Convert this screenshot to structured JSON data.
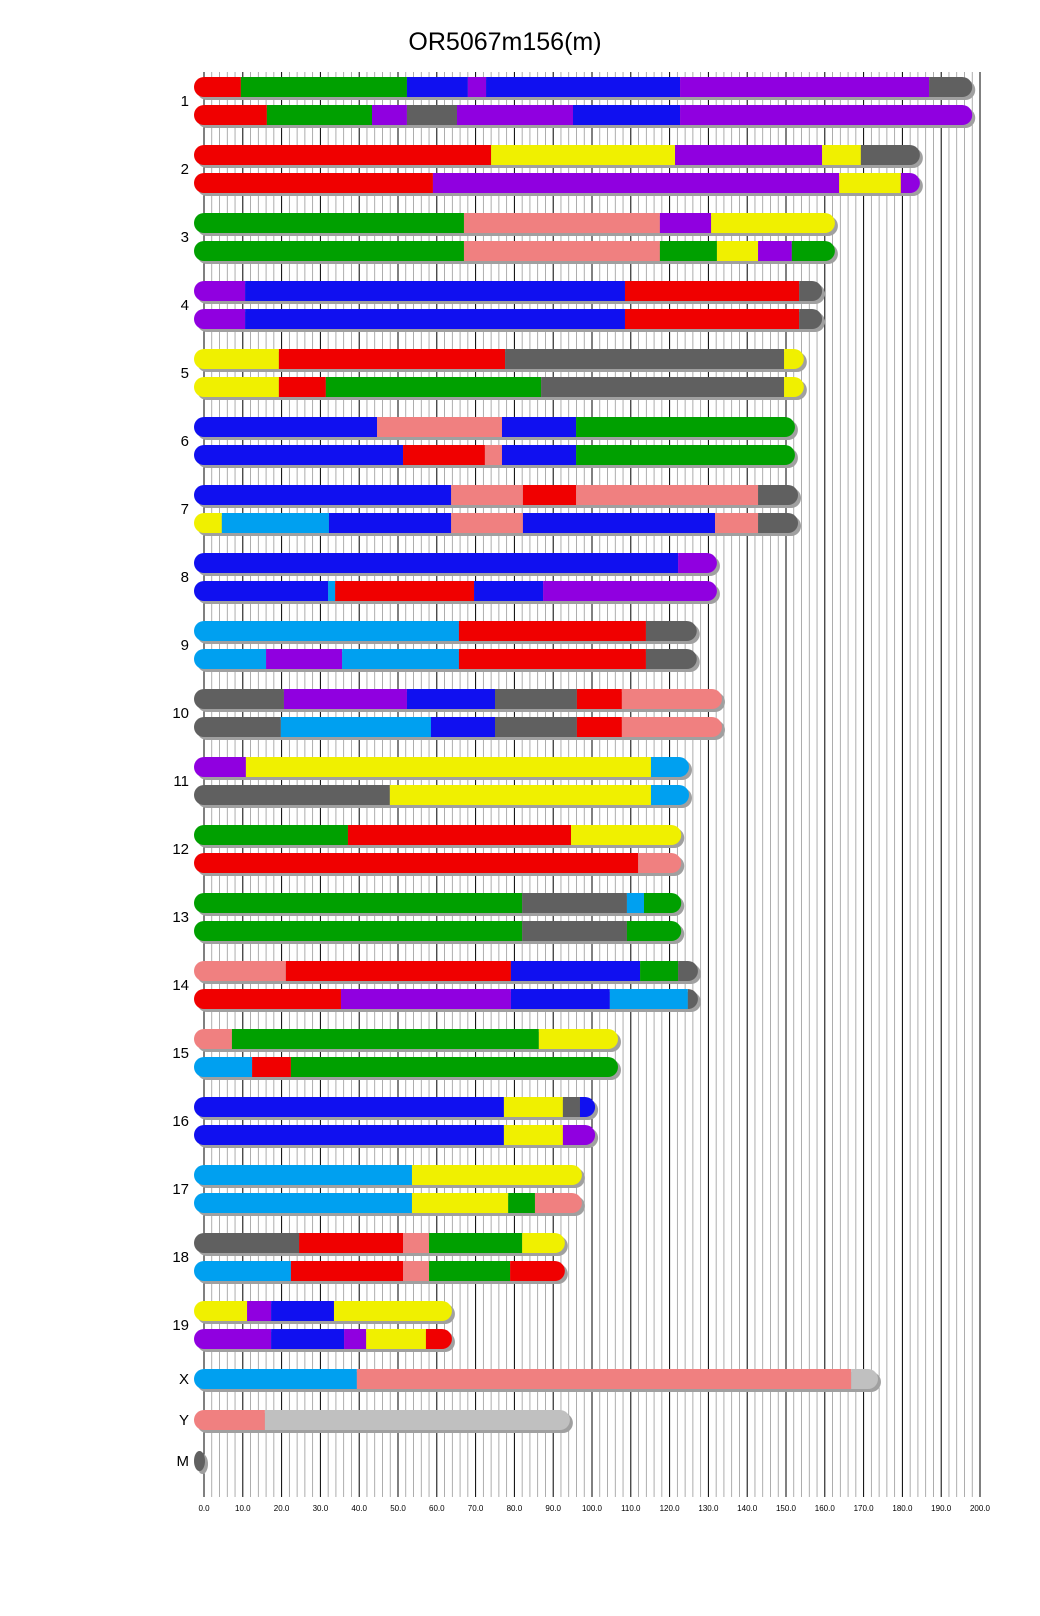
{
  "chart_data": {
    "type": "chromosome-painting",
    "title": "OR5067m156(m)",
    "xlim": [
      0,
      200
    ],
    "grid": {
      "major_step": 10,
      "minor_step": 2
    },
    "x_ticks": [
      "0.0",
      "10.0",
      "20.0",
      "30.0",
      "40.0",
      "50.0",
      "60.0",
      "70.0",
      "80.0",
      "90.0",
      "100.0",
      "110.0",
      "120.0",
      "130.0",
      "140.0",
      "150.0",
      "160.0",
      "170.0",
      "180.0",
      "190.0",
      "200.0"
    ],
    "colors": {
      "red": "#F00000",
      "green": "#00A000",
      "blue": "#1010F0",
      "purple": "#9000E0",
      "gray": "#606060",
      "yellow": "#F0F000",
      "pink": "#F08080",
      "lightblue": "#00A0F0",
      "lightgray": "#C0C0C0"
    },
    "chromosomes": [
      {
        "name": "1",
        "haplotypes": [
          [
            [
              "red",
              9.5
            ],
            [
              "green",
              52.3
            ],
            [
              "blue",
              68
            ],
            [
              "purple",
              72.7
            ],
            [
              "blue",
              122.7
            ],
            [
              "purple",
              186.9
            ],
            [
              "gray",
              198
            ]
          ],
          [
            [
              "red",
              16.2
            ],
            [
              "green",
              43.3
            ],
            [
              "purple",
              52.3
            ],
            [
              "gray",
              65.2
            ],
            [
              "purple",
              95.1
            ],
            [
              "blue",
              122.7
            ],
            [
              "purple",
              198
            ]
          ]
        ]
      },
      {
        "name": "2",
        "haplotypes": [
          [
            [
              "red",
              74
            ],
            [
              "yellow",
              121.4
            ],
            [
              "purple",
              159.3
            ],
            [
              "yellow",
              169.3
            ],
            [
              "gray",
              184.5
            ]
          ],
          [
            [
              "red",
              59
            ],
            [
              "purple",
              163.7
            ],
            [
              "yellow",
              179.6
            ],
            [
              "purple",
              184.5
            ]
          ]
        ]
      },
      {
        "name": "3",
        "haplotypes": [
          [
            [
              "green",
              67
            ],
            [
              "pink",
              117.5
            ],
            [
              "purple",
              130.7
            ],
            [
              "yellow",
              162.6
            ]
          ],
          [
            [
              "green",
              67
            ],
            [
              "pink",
              117.5
            ],
            [
              "green",
              132.2
            ],
            [
              "yellow",
              142.8
            ],
            [
              "purple",
              151.5
            ],
            [
              "green",
              162.6
            ]
          ]
        ]
      },
      {
        "name": "4",
        "haplotypes": [
          [
            [
              "purple",
              10.6
            ],
            [
              "blue",
              108.5
            ],
            [
              "red",
              153.4
            ],
            [
              "gray",
              159.3
            ]
          ],
          [
            [
              "purple",
              10.6
            ],
            [
              "blue",
              108.5
            ],
            [
              "red",
              153.4
            ],
            [
              "gray",
              159.3
            ]
          ]
        ]
      },
      {
        "name": "5",
        "haplotypes": [
          [
            [
              "yellow",
              19.3
            ],
            [
              "red",
              77.6
            ],
            [
              "gray",
              149.5
            ],
            [
              "yellow",
              154.6
            ]
          ],
          [
            [
              "yellow",
              19.3
            ],
            [
              "red",
              31.4
            ],
            [
              "green",
              86.9
            ],
            [
              "gray",
              149.5
            ],
            [
              "yellow",
              154.6
            ]
          ]
        ]
      },
      {
        "name": "6",
        "haplotypes": [
          [
            [
              "blue",
              44.6
            ],
            [
              "pink",
              76.8
            ],
            [
              "blue",
              95.9
            ],
            [
              "green",
              152.3
            ]
          ],
          [
            [
              "blue",
              51.3
            ],
            [
              "red",
              72.4
            ],
            [
              "pink",
              76.8
            ],
            [
              "blue",
              95.9
            ],
            [
              "green",
              152.3
            ]
          ]
        ]
      },
      {
        "name": "7",
        "haplotypes": [
          [
            [
              "blue",
              63.7
            ],
            [
              "pink",
              82.2
            ],
            [
              "red",
              95.9
            ],
            [
              "pink",
              142.8
            ],
            [
              "gray",
              153.1
            ]
          ],
          [
            [
              "yellow",
              4.6
            ],
            [
              "lightblue",
              32.2
            ],
            [
              "blue",
              63.7
            ],
            [
              "pink",
              82.2
            ],
            [
              "blue",
              131.7
            ],
            [
              "pink",
              142.8
            ],
            [
              "gray",
              153.1
            ]
          ]
        ]
      },
      {
        "name": "8",
        "haplotypes": [
          [
            [
              "blue",
              122.2
            ],
            [
              "purple",
              132.2
            ]
          ],
          [
            [
              "blue",
              32
            ],
            [
              "lightblue",
              33.8
            ],
            [
              "red",
              69.6
            ],
            [
              "blue",
              87.4
            ],
            [
              "purple",
              132.2
            ]
          ]
        ]
      },
      {
        "name": "9",
        "haplotypes": [
          [
            [
              "lightblue",
              65.7
            ],
            [
              "red",
              113.9
            ],
            [
              "gray",
              127
            ]
          ],
          [
            [
              "lightblue",
              16
            ],
            [
              "purple",
              35.6
            ],
            [
              "lightblue",
              65.7
            ],
            [
              "red",
              113.9
            ],
            [
              "gray",
              127
            ]
          ]
        ]
      },
      {
        "name": "10",
        "haplotypes": [
          [
            [
              "gray",
              20.6
            ],
            [
              "purple",
              52.3
            ],
            [
              "blue",
              75
            ],
            [
              "gray",
              96.1
            ],
            [
              "red",
              107.7
            ],
            [
              "pink",
              133.5
            ]
          ],
          [
            [
              "gray",
              19.8
            ],
            [
              "lightblue",
              58.5
            ],
            [
              "blue",
              75
            ],
            [
              "gray",
              96.1
            ],
            [
              "red",
              107.7
            ],
            [
              "pink",
              133.5
            ]
          ]
        ]
      },
      {
        "name": "11",
        "haplotypes": [
          [
            [
              "purple",
              10.8
            ],
            [
              "yellow",
              115.2
            ],
            [
              "lightblue",
              125
            ]
          ],
          [
            [
              "gray",
              47.9
            ],
            [
              "yellow",
              115.2
            ],
            [
              "lightblue",
              125
            ]
          ]
        ]
      },
      {
        "name": "12",
        "haplotypes": [
          [
            [
              "green",
              37.1
            ],
            [
              "red",
              94.6
            ],
            [
              "yellow",
              123
            ]
          ],
          [
            [
              "red",
              111.9
            ],
            [
              "pink",
              123
            ]
          ]
        ]
      },
      {
        "name": "13",
        "haplotypes": [
          [
            [
              "green",
              82
            ],
            [
              "gray",
              109
            ],
            [
              "lightblue",
              113.4
            ],
            [
              "green",
              123
            ]
          ],
          [
            [
              "green",
              82
            ],
            [
              "gray",
              109
            ],
            [
              "green",
              123
            ]
          ]
        ]
      },
      {
        "name": "14",
        "haplotypes": [
          [
            [
              "pink",
              21.1
            ],
            [
              "red",
              79.1
            ],
            [
              "blue",
              112.4
            ],
            [
              "green",
              122.2
            ],
            [
              "gray",
              127.3
            ]
          ],
          [
            [
              "red",
              35.3
            ],
            [
              "purple",
              79.1
            ],
            [
              "blue",
              104.6
            ],
            [
              "lightblue",
              124.7
            ],
            [
              "gray",
              127.3
            ]
          ]
        ]
      },
      {
        "name": "15",
        "haplotypes": [
          [
            [
              "pink",
              7.2
            ],
            [
              "green",
              86.3
            ],
            [
              "yellow",
              106.7
            ]
          ],
          [
            [
              "lightblue",
              12.4
            ],
            [
              "red",
              22.4
            ],
            [
              "green",
              106.7
            ]
          ]
        ]
      },
      {
        "name": "16",
        "haplotypes": [
          [
            [
              "blue",
              77.3
            ],
            [
              "yellow",
              92.5
            ],
            [
              "gray",
              96.9
            ],
            [
              "blue",
              100.8
            ]
          ],
          [
            [
              "blue",
              77.3
            ],
            [
              "yellow",
              92.5
            ],
            [
              "purple",
              100.8
            ]
          ]
        ]
      },
      {
        "name": "17",
        "haplotypes": [
          [
            [
              "lightblue",
              53.6
            ],
            [
              "yellow",
              97.4
            ]
          ],
          [
            [
              "lightblue",
              53.6
            ],
            [
              "yellow",
              78.4
            ],
            [
              "green",
              85.3
            ],
            [
              "pink",
              97.4
            ]
          ]
        ]
      },
      {
        "name": "18",
        "haplotypes": [
          [
            [
              "gray",
              24.5
            ],
            [
              "red",
              51.3
            ],
            [
              "pink",
              58
            ],
            [
              "green",
              82
            ],
            [
              "yellow",
              93
            ]
          ],
          [
            [
              "lightblue",
              22.4
            ],
            [
              "red",
              51.3
            ],
            [
              "pink",
              58
            ],
            [
              "green",
              78.9
            ],
            [
              "red",
              93
            ]
          ]
        ]
      },
      {
        "name": "19",
        "haplotypes": [
          [
            [
              "yellow",
              11.1
            ],
            [
              "purple",
              17.3
            ],
            [
              "blue",
              33.5
            ],
            [
              "yellow",
              63.9
            ]
          ],
          [
            [
              "purple",
              17.3
            ],
            [
              "blue",
              36.1
            ],
            [
              "purple",
              41.8
            ],
            [
              "yellow",
              57.2
            ],
            [
              "red",
              63.9
            ]
          ]
        ]
      },
      {
        "name": "X",
        "haplotypes": [
          [
            [
              "lightblue",
              39.4
            ],
            [
              "pink",
              166.8
            ],
            [
              "lightgray",
              173.7
            ]
          ]
        ]
      },
      {
        "name": "Y",
        "haplotypes": [
          [
            [
              "pink",
              15.7
            ],
            [
              "lightgray",
              94.3
            ]
          ]
        ]
      },
      {
        "name": "M",
        "haplotypes": [
          [
            [
              "gray",
              0.1
            ]
          ]
        ]
      }
    ]
  }
}
